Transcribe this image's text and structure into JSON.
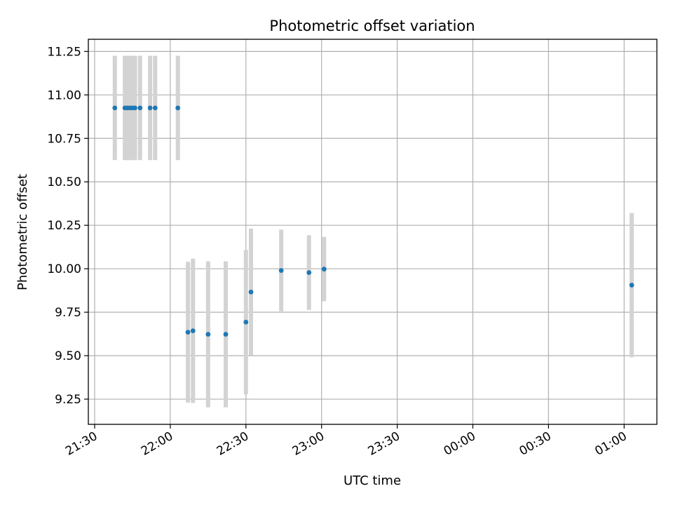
{
  "chart_data": {
    "type": "scatter",
    "title": "Photometric offset variation",
    "xlabel": "UTC time",
    "ylabel": "Photometric offset",
    "grid": true,
    "x_ticks": [
      "21:30",
      "22:00",
      "22:30",
      "23:00",
      "23:30",
      "00:00",
      "00:30",
      "01:00"
    ],
    "y_ticks": [
      "9.25",
      "9.50",
      "9.75",
      "10.00",
      "10.25",
      "10.50",
      "10.75",
      "11.00",
      "11.25"
    ],
    "ylim": [
      9.105,
      11.32
    ],
    "colors": {
      "points": "#1f77b4",
      "error_bars": "#d3d3d3",
      "grid": "#b0b0b0"
    },
    "points": [
      {
        "x": "21:38",
        "y": 10.925,
        "yerr": 0.3
      },
      {
        "x": "21:42",
        "y": 10.925,
        "yerr": 0.3
      },
      {
        "x": "21:43",
        "y": 10.925,
        "yerr": 0.3
      },
      {
        "x": "21:44",
        "y": 10.925,
        "yerr": 0.3
      },
      {
        "x": "21:45",
        "y": 10.925,
        "yerr": 0.3
      },
      {
        "x": "21:46",
        "y": 10.925,
        "yerr": 0.3
      },
      {
        "x": "21:48",
        "y": 10.925,
        "yerr": 0.3
      },
      {
        "x": "21:52",
        "y": 10.925,
        "yerr": 0.3
      },
      {
        "x": "21:54",
        "y": 10.925,
        "yerr": 0.3
      },
      {
        "x": "22:03",
        "y": 10.925,
        "yerr": 0.3
      },
      {
        "x": "22:07",
        "y": 9.635,
        "yerr": 0.405
      },
      {
        "x": "22:09",
        "y": 9.643,
        "yerr": 0.415
      },
      {
        "x": "22:15",
        "y": 9.623,
        "yerr": 0.42
      },
      {
        "x": "22:22",
        "y": 9.623,
        "yerr": 0.42
      },
      {
        "x": "22:30",
        "y": 9.693,
        "yerr": 0.415
      },
      {
        "x": "22:32",
        "y": 9.866,
        "yerr": 0.365
      },
      {
        "x": "22:44",
        "y": 9.99,
        "yerr": 0.235
      },
      {
        "x": "22:55",
        "y": 9.978,
        "yerr": 0.215
      },
      {
        "x": "23:01",
        "y": 9.998,
        "yerr": 0.185
      },
      {
        "x": "01:03",
        "y": 9.906,
        "yerr": 0.415
      }
    ]
  }
}
